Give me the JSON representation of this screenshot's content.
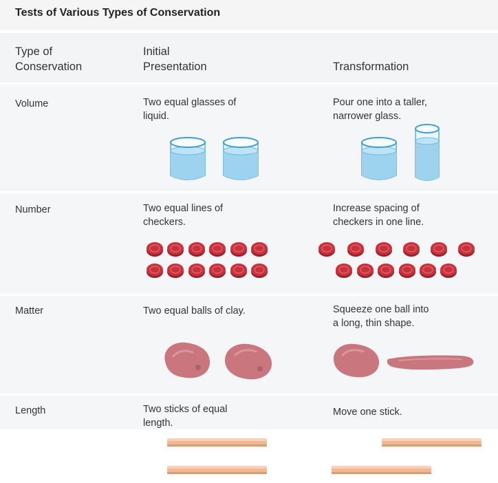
{
  "title": "Tests of Various Types of Conservation",
  "headers": {
    "type": "Type of\nConservation",
    "initial": "Initial\nPresentation",
    "transformation": "Transformation"
  },
  "rows": [
    {
      "type": "Volume",
      "initial": "Two equal glasses of\nliquid.",
      "transformation": "Pour one into a taller,\nnarrower glass."
    },
    {
      "type": "Number",
      "initial": "Two equal lines of\ncheckers.",
      "transformation": "Increase spacing of\ncheckers in one line."
    },
    {
      "type": "Matter",
      "initial": "Two equal balls of clay.",
      "transformation": "Squeeze one ball into\na long, thin shape."
    },
    {
      "type": "Length",
      "initial": "Two sticks of equal\nlength.",
      "transformation": "Move one stick."
    }
  ],
  "colors": {
    "water": "#9ed3ef",
    "glass_rim": "#3d9fd6",
    "checker": "#c8323c",
    "clay": "#c9767f",
    "stick": "#f0b894"
  }
}
